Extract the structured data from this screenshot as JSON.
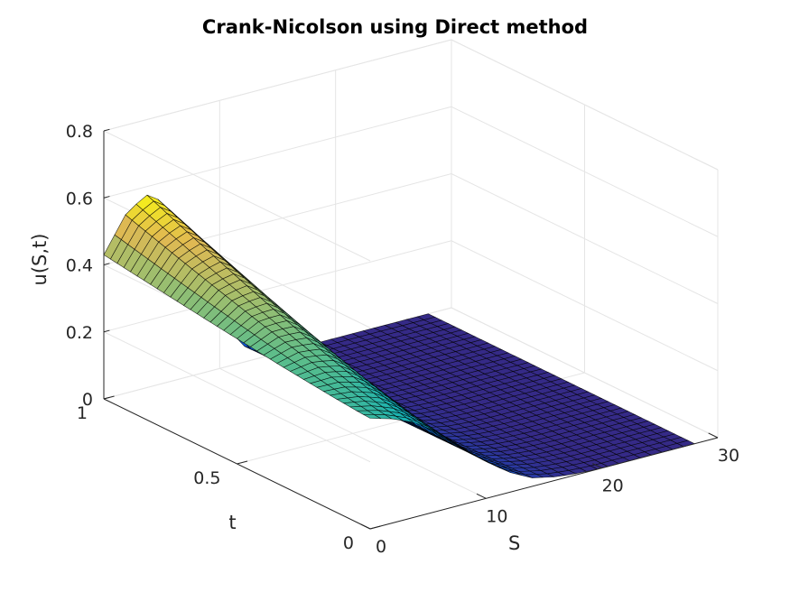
{
  "chart_data": {
    "type": "surface",
    "title": "Crank-Nicolson using Direct method",
    "xlabel": "S",
    "ylabel": "t",
    "zlabel": "u(S,t)",
    "xlim": [
      0,
      30
    ],
    "ylim": [
      0,
      1
    ],
    "zlim": [
      0,
      0.8
    ],
    "x_ticks": [
      0,
      10,
      20,
      30
    ],
    "x_tick_labels": [
      "0",
      "10",
      "20",
      "30"
    ],
    "y_ticks": [
      0,
      0.5,
      1
    ],
    "y_tick_labels": [
      "0",
      "0.5",
      "1"
    ],
    "z_ticks": [
      0,
      0.2,
      0.4,
      0.6,
      0.8
    ],
    "z_tick_labels": [
      "0",
      "0.2",
      "0.4",
      "0.6",
      "0.8"
    ],
    "grid": true,
    "colormap": "parula",
    "series": [
      {
        "description_values": "u(S,t) sampled along S at selected t",
        "S": [
          0,
          2,
          4,
          6,
          8,
          10,
          12,
          14,
          16,
          18,
          20,
          22,
          24,
          26,
          28,
          30
        ],
        "u_at_t1": [
          0.43,
          0.54,
          0.58,
          0.5,
          0.33,
          0.15,
          0.05,
          0.01,
          0.0,
          0.0,
          0.0,
          0.0,
          0.0,
          0.0,
          0.0,
          0.0
        ],
        "u_at_t0": [
          0.33,
          0.31,
          0.28,
          0.23,
          0.17,
          0.11,
          0.06,
          0.025,
          0.01,
          0.003,
          0.0,
          0.0,
          0.0,
          0.0,
          0.0,
          0.0
        ]
      }
    ]
  }
}
